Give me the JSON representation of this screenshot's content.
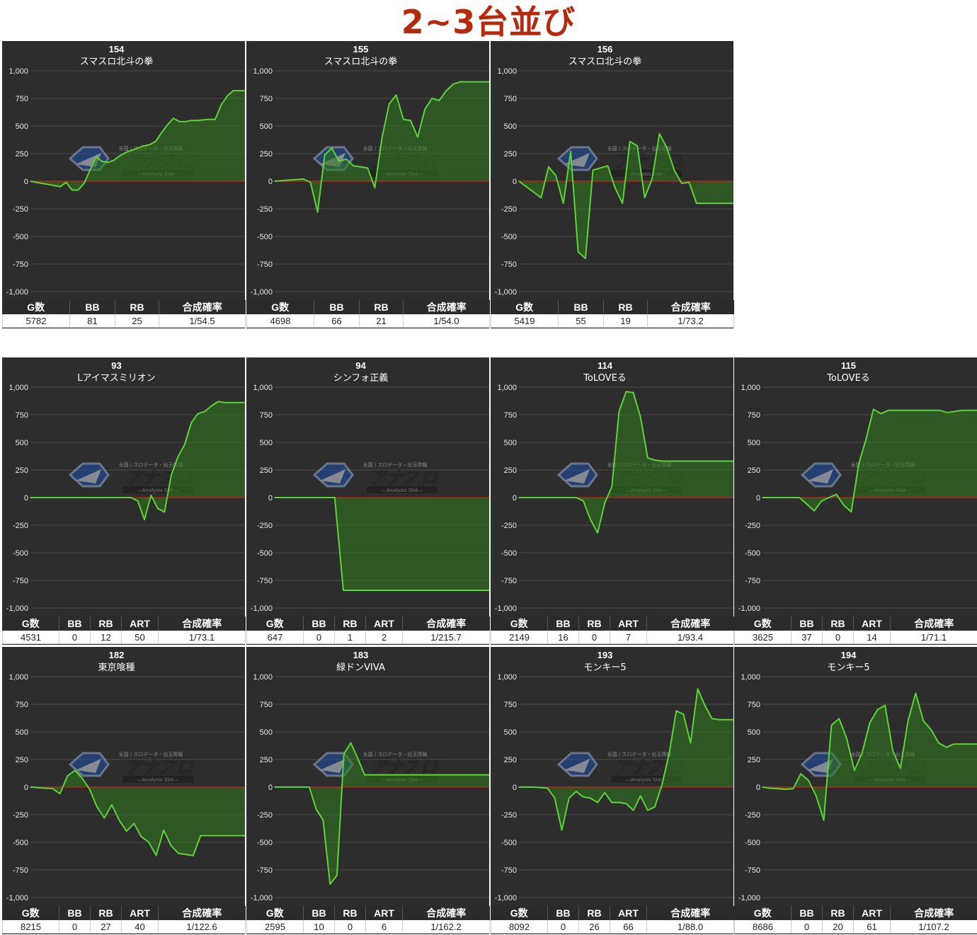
{
  "page_title": "2~3台並び",
  "watermark": {
    "top": "全国 / スロデータ・出玉情報",
    "main": "アナスロ",
    "sub": "—Analysis Slot—"
  },
  "colors": {
    "title": "#b52a0c",
    "panel_bg": "#2d2d2d",
    "line": "#5fd23a",
    "fill": "#2f7a1e",
    "zero_line": "#b0281c",
    "grid": "#4a4a4a"
  },
  "stat_headers": {
    "g": "G数",
    "bb": "BB",
    "rb": "RB",
    "art": "ART",
    "rate": "合成確率"
  },
  "chart_data": [
    {
      "type": "area",
      "machine_no": "154",
      "machine_name": "スマスロ北斗の拳",
      "ylim": [
        -1000,
        1000
      ],
      "yticks": [
        "1,000",
        "750",
        "500",
        "250",
        "0",
        "-250",
        "-500",
        "-750",
        "-1,000"
      ],
      "grid": true,
      "values": [
        0,
        -10,
        -20,
        -30,
        -40,
        -50,
        -10,
        -80,
        -80,
        -20,
        100,
        220,
        180,
        170,
        190,
        230,
        260,
        280,
        300,
        320,
        330,
        360,
        440,
        510,
        570,
        540,
        540,
        550,
        550,
        555,
        560,
        560,
        690,
        770,
        820,
        820,
        820
      ],
      "stats": {
        "g": "5782",
        "bb": "81",
        "rb": "25",
        "rate": "1/54.5"
      }
    },
    {
      "type": "area",
      "machine_no": "155",
      "machine_name": "スマスロ北斗の拳",
      "ylim": [
        -1000,
        1000
      ],
      "yticks": [
        "1,000",
        "750",
        "500",
        "250",
        "0",
        "-250",
        "-500",
        "-750",
        "-1,000"
      ],
      "grid": true,
      "values": [
        0,
        5,
        10,
        15,
        20,
        -10,
        -280,
        240,
        300,
        180,
        200,
        140,
        130,
        120,
        -60,
        390,
        700,
        780,
        560,
        550,
        400,
        650,
        750,
        730,
        820,
        880,
        900,
        900,
        900,
        900,
        900
      ],
      "stats": {
        "g": "4698",
        "bb": "66",
        "rb": "21",
        "rate": "1/54.0"
      }
    },
    {
      "type": "area",
      "machine_no": "156",
      "machine_name": "スマスロ北斗の拳",
      "ylim": [
        -1000,
        1000
      ],
      "yticks": [
        "1,000",
        "750",
        "500",
        "250",
        "0",
        "-250",
        "-500",
        "-750",
        "-1,000"
      ],
      "grid": true,
      "values": [
        0,
        -50,
        -100,
        -150,
        130,
        50,
        -200,
        270,
        -640,
        -700,
        100,
        120,
        140,
        -60,
        -200,
        360,
        320,
        -150,
        20,
        430,
        300,
        100,
        -20,
        -10,
        -200,
        -200,
        -200,
        -200,
        -200,
        -200
      ],
      "stats": {
        "g": "5419",
        "bb": "55",
        "rb": "19",
        "rate": "1/73.2"
      }
    },
    {
      "type": "area",
      "machine_no": "93",
      "machine_name": "Lアイマスミリオン",
      "ylim": [
        -1000,
        1000
      ],
      "yticks": [
        "1,000",
        "750",
        "500",
        "250",
        "0",
        "-250",
        "-500",
        "-750",
        "-1,000"
      ],
      "grid": true,
      "values": [
        0,
        0,
        0,
        0,
        0,
        0,
        0,
        0,
        0,
        0,
        0,
        0,
        0,
        0,
        0,
        0,
        -30,
        -200,
        20,
        -100,
        -130,
        200,
        370,
        480,
        680,
        760,
        780,
        830,
        870,
        860,
        860,
        860,
        860
      ],
      "stats": {
        "g": "4531",
        "bb": "0",
        "rb": "12",
        "art": "50",
        "rate": "1/73.1"
      }
    },
    {
      "type": "area",
      "machine_no": "94",
      "machine_name": "シンフォ正義",
      "ylim": [
        -1000,
        1000
      ],
      "yticks": [
        "1,000",
        "750",
        "500",
        "250",
        "0",
        "-250",
        "-500",
        "-750",
        "-1,000"
      ],
      "grid": true,
      "values": [
        0,
        0,
        0,
        0,
        0,
        0,
        0,
        0,
        -840,
        -840,
        -840,
        -840,
        -840,
        -840,
        -840,
        -840,
        -840,
        -840,
        -840,
        -840,
        -840,
        -840,
        -840,
        -840,
        -840,
        -840
      ],
      "stats": {
        "g": "647",
        "bb": "0",
        "rb": "1",
        "art": "2",
        "rate": "1/215.7"
      }
    },
    {
      "type": "area",
      "machine_no": "114",
      "machine_name": "ToLOVEる",
      "ylim": [
        -1000,
        1000
      ],
      "yticks": [
        "1,000",
        "750",
        "500",
        "250",
        "0",
        "-250",
        "-500",
        "-750",
        "-1,000"
      ],
      "grid": true,
      "values": [
        0,
        0,
        0,
        0,
        0,
        0,
        0,
        0,
        0,
        -30,
        -200,
        -320,
        -50,
        100,
        780,
        960,
        950,
        730,
        360,
        340,
        330,
        330,
        330,
        330,
        330,
        330,
        330,
        330,
        330,
        330,
        330
      ],
      "stats": {
        "g": "2149",
        "bb": "16",
        "rb": "0",
        "art": "7",
        "rate": "1/93.4"
      }
    },
    {
      "type": "area",
      "machine_no": "115",
      "machine_name": "ToLOVEる",
      "ylim": [
        -1000,
        1000
      ],
      "yticks": [
        "1,000",
        "750",
        "500",
        "250",
        "0",
        "-250",
        "-500",
        "-750",
        "-1,000"
      ],
      "grid": true,
      "values": [
        0,
        0,
        0,
        0,
        0,
        0,
        -60,
        -120,
        -30,
        0,
        30,
        -70,
        -130,
        300,
        530,
        800,
        760,
        790,
        790,
        790,
        790,
        790,
        790,
        790,
        790,
        770,
        780,
        790,
        790,
        790
      ],
      "stats": {
        "g": "3625",
        "bb": "37",
        "rb": "0",
        "art": "14",
        "rate": "1/71.1"
      }
    },
    {
      "type": "area",
      "machine_no": "182",
      "machine_name": "東京喰種",
      "ylim": [
        -1000,
        1000
      ],
      "yticks": [
        "1,000",
        "750",
        "500",
        "250",
        "0",
        "-250",
        "-500",
        "-750",
        "-1,000"
      ],
      "grid": true,
      "values": [
        0,
        -5,
        -10,
        -15,
        -60,
        100,
        150,
        80,
        -20,
        -180,
        -280,
        -160,
        -300,
        -400,
        -330,
        -450,
        -500,
        -620,
        -390,
        -530,
        -600,
        -610,
        -620,
        -440,
        -440,
        -440,
        -440,
        -440,
        -440,
        -440
      ],
      "stats": {
        "g": "8215",
        "bb": "0",
        "rb": "27",
        "art": "40",
        "rate": "1/122.6"
      }
    },
    {
      "type": "area",
      "machine_no": "183",
      "machine_name": "緑ドンVIVA",
      "ylim": [
        -1000,
        1000
      ],
      "yticks": [
        "1,000",
        "750",
        "500",
        "250",
        "0",
        "-250",
        "-500",
        "-750",
        "-1,000"
      ],
      "grid": true,
      "values": [
        0,
        0,
        0,
        0,
        0,
        0,
        -200,
        -300,
        -880,
        -800,
        300,
        400,
        260,
        110,
        110,
        110,
        110,
        110,
        110,
        110,
        110,
        110,
        110,
        110,
        110,
        110,
        110,
        110,
        110,
        110,
        110,
        110
      ],
      "stats": {
        "g": "2595",
        "bb": "10",
        "rb": "0",
        "art": "6",
        "rate": "1/162.2"
      }
    },
    {
      "type": "area",
      "machine_no": "193",
      "machine_name": "モンキー5",
      "ylim": [
        -1000,
        1000
      ],
      "yticks": [
        "1,000",
        "750",
        "500",
        "250",
        "0",
        "-250",
        "-500",
        "-750",
        "-1,000"
      ],
      "grid": true,
      "values": [
        0,
        0,
        0,
        -5,
        -10,
        -100,
        -390,
        -100,
        -40,
        -90,
        -100,
        -140,
        -50,
        -140,
        -140,
        -150,
        -210,
        -80,
        -210,
        -180,
        20,
        300,
        690,
        660,
        400,
        890,
        740,
        620,
        610,
        610,
        610
      ],
      "stats": {
        "g": "8092",
        "bb": "0",
        "rb": "26",
        "art": "66",
        "rate": "1/88.0"
      }
    },
    {
      "type": "area",
      "machine_no": "194",
      "machine_name": "モンキー5",
      "ylim": [
        -1000,
        1000
      ],
      "yticks": [
        "1,000",
        "750",
        "500",
        "250",
        "0",
        "-250",
        "-500",
        "-750",
        "-1,000"
      ],
      "grid": true,
      "values": [
        0,
        -10,
        -15,
        -20,
        -15,
        120,
        60,
        -80,
        -300,
        560,
        620,
        440,
        150,
        310,
        580,
        700,
        740,
        330,
        170,
        600,
        850,
        600,
        520,
        400,
        360,
        390,
        390,
        390,
        390
      ],
      "stats": {
        "g": "8686",
        "bb": "0",
        "rb": "20",
        "art": "61",
        "rate": "1/107.2"
      }
    }
  ]
}
